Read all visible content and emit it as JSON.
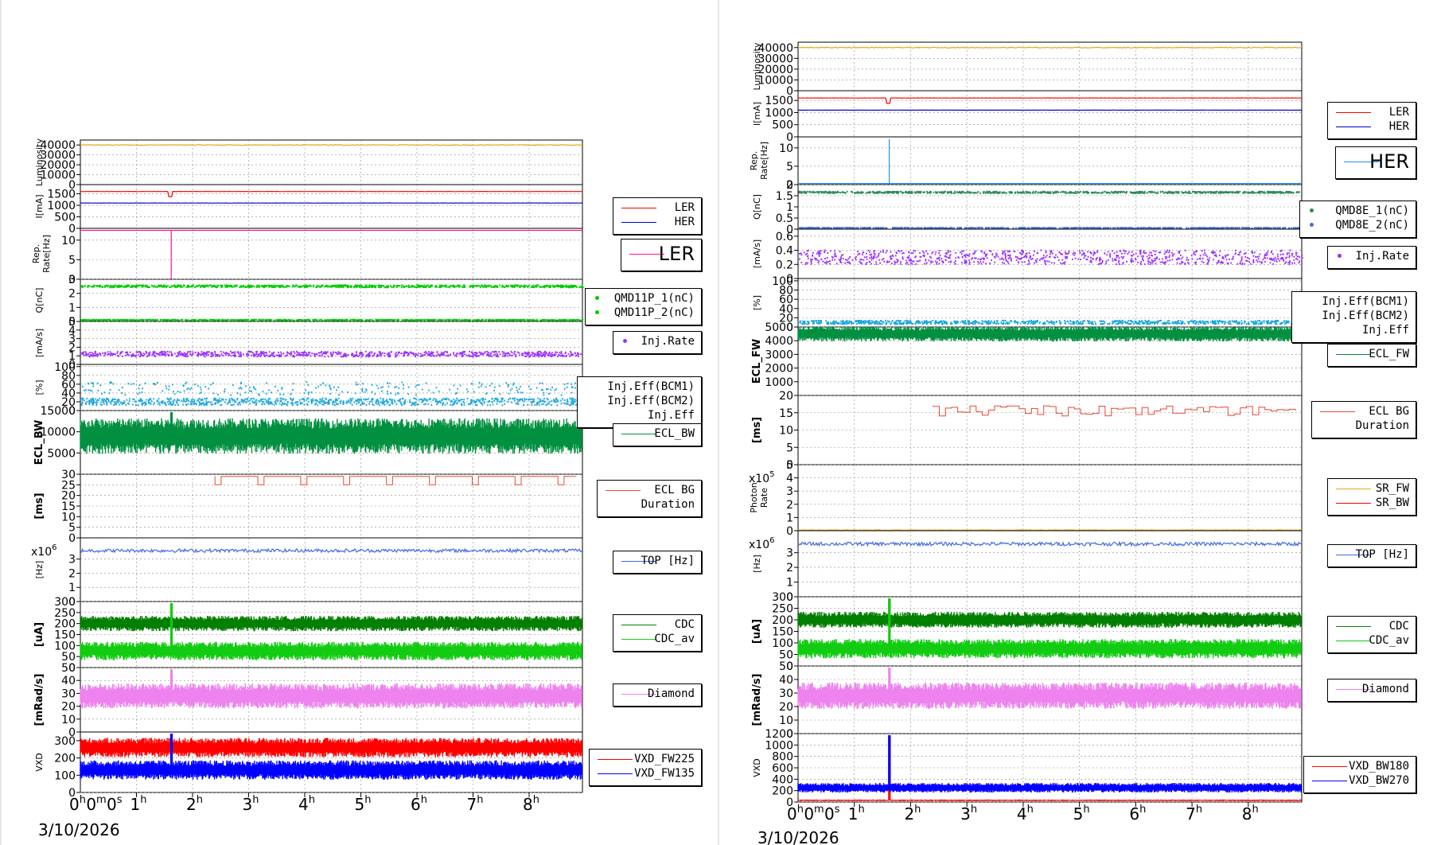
{
  "colors": {
    "lum": "#e6a817",
    "ler": "#ff0000",
    "her": "#0000cc",
    "pink": "#ff1493",
    "herblue": "#1e90ff",
    "green": "#00cc00",
    "qblue": "#3f6fd0",
    "purple": "#9b30ff",
    "cyan": "#1aa7de",
    "eclgreen": "#009040",
    "bgred": "#e84830",
    "topblue": "#4169e1",
    "cdc": "#007f00",
    "cdcav": "#11cc11",
    "diamond": "#ee82ee",
    "red": "#ff0000",
    "blue": "#0000ff",
    "srfw": "#e6a817",
    "srbw": "#ff0000",
    "teal": "#2e8b57",
    "darkblue": "#000080"
  },
  "time_axis": {
    "ticks": [
      1,
      2,
      3,
      4,
      5,
      6,
      7,
      8
    ],
    "first_label": "0h0m0s",
    "range_hours": [
      0,
      8.95
    ],
    "date": "3/10/2026"
  },
  "chart_data": [
    {
      "type": "line",
      "panel": "left",
      "strips": [
        {
          "ylabel": "Luminosity",
          "ylim": [
            0,
            45000
          ],
          "ticks": [
            "40000",
            "30000",
            "20000",
            "10000",
            "0"
          ],
          "series": [
            {
              "color": "lum",
              "base": 40000,
              "noise": 400
            }
          ]
        },
        {
          "ylabel": "I[mA]",
          "ylim": [
            0,
            1900
          ],
          "ticks": [
            "1500",
            "1000",
            "500",
            "0"
          ],
          "series": [
            {
              "color": "ler",
              "base": 1600,
              "noise": 4,
              "dip": 1.6
            },
            {
              "color": "her",
              "base": 1100,
              "noise": 4
            }
          ],
          "legend": [
            "LER",
            "HER"
          ]
        },
        {
          "ylabel": "Rep. Rate[Hz]",
          "ylim": [
            0,
            13
          ],
          "ticks": [
            "10",
            "5",
            "0"
          ],
          "series": [
            {
              "color": "pink",
              "base": 12.5,
              "noise": 0,
              "spike": 1.62
            }
          ],
          "legend_big": "LER"
        },
        {
          "ylabel": "Q[nC]",
          "ylim": [
            0,
            3
          ],
          "ticks": [
            "3",
            "2",
            "1",
            "0"
          ],
          "series": [
            {
              "color": "green",
              "base": 2.5,
              "noise": 0.08,
              "dots": true
            },
            {
              "color": "green",
              "base": 0.1,
              "noise": 0.03,
              "dots": true
            }
          ],
          "legend_dots": [
            "QMD11P_1(nC)",
            "QMD11P_2(nC)"
          ]
        },
        {
          "ylabel": "[mA/s]",
          "ylim": [
            0,
            5
          ],
          "ticks": [
            "5",
            "4",
            "3",
            "2",
            "1",
            "0"
          ],
          "series": [
            {
              "color": "purple",
              "base": 1.2,
              "noise": 0.3,
              "dots": true
            }
          ],
          "legend_dots": [
            "Inj.Rate"
          ]
        },
        {
          "ylabel": "[%]",
          "ylim": [
            0,
            105
          ],
          "ticks": [
            "100",
            "80",
            "60",
            "40",
            "20",
            "0"
          ],
          "series": [
            {
              "color": "cyan",
              "base": 20,
              "noise": 8,
              "dots": true
            },
            {
              "color": "cyan",
              "base": 50,
              "noise": 15,
              "dots": true,
              "sparse": true
            }
          ],
          "legend_text": [
            "Inj.Eff(BCM1)",
            "Inj.Eff(BCM2)",
            "Inj.Eff"
          ]
        },
        {
          "ylabel": "ECL_BW",
          "ylim": [
            0,
            15000
          ],
          "ticks": [
            "15000",
            "10000",
            "5000"
          ],
          "series": [
            {
              "color": "eclgreen",
              "base": 9000,
              "noise": 3000,
              "fill": true
            }
          ],
          "legend": [
            "ECL_BW"
          ]
        },
        {
          "ylabel": "[ms]",
          "ylim": [
            0,
            30
          ],
          "ticks": [
            "30",
            "25",
            "20",
            "15",
            "10",
            "5",
            "0"
          ],
          "series": [
            {
              "color": "bgred",
              "base": 29,
              "noise": 0,
              "steps": true
            }
          ],
          "legend": [
            "ECL BG",
            "Duration"
          ]
        },
        {
          "ylabel": "[Hz]",
          "ylim": [
            0,
            4.5
          ],
          "ticks": [
            "3",
            "2",
            "1",
            "0"
          ],
          "exp": "x10",
          "exp_sup": "6",
          "series": [
            {
              "color": "topblue",
              "base": 3.6,
              "noise": 0.12
            }
          ],
          "legend": [
            "TOP [Hz]"
          ]
        },
        {
          "ylabel": "[uA]",
          "ylim": [
            0,
            300
          ],
          "ticks": [
            "300",
            "250",
            "200",
            "150",
            "100",
            "50",
            "0"
          ],
          "series": [
            {
              "color": "cdc",
              "base": 200,
              "noise": 25,
              "fill": true
            },
            {
              "color": "cdcav",
              "base": 75,
              "noise": 30,
              "fill": true
            }
          ],
          "legend": [
            "CDC",
            "CDC_av"
          ]
        },
        {
          "ylabel": "[mRad/s]",
          "ylim": [
            0,
            50
          ],
          "ticks": [
            "50",
            "40",
            "30",
            "20",
            "10",
            "0"
          ],
          "series": [
            {
              "color": "diamond",
              "base": 28,
              "noise": 7,
              "fill": true
            }
          ],
          "legend": [
            "Diamond"
          ]
        },
        {
          "ylabel": "VXD",
          "ylim": [
            0,
            350
          ],
          "ticks": [
            "300",
            "200",
            "100",
            "0"
          ],
          "series": [
            {
              "color": "red",
              "base": 260,
              "noise": 40,
              "fill": true
            },
            {
              "color": "blue",
              "base": 130,
              "noise": 40,
              "fill": true
            }
          ],
          "legend": [
            "VXD_FW225",
            "VXD_FW135"
          ]
        }
      ]
    },
    {
      "type": "line",
      "panel": "right",
      "strips": [
        {
          "ylabel": "Luminosity",
          "ylim": [
            0,
            45000
          ],
          "ticks": [
            "40000",
            "30000",
            "20000",
            "10000",
            "0"
          ],
          "series": [
            {
              "color": "lum",
              "base": 40000,
              "noise": 400
            }
          ]
        },
        {
          "ylabel": "I[mA]",
          "ylim": [
            0,
            1900
          ],
          "ticks": [
            "1500",
            "1000",
            "500",
            "0"
          ],
          "series": [
            {
              "color": "ler",
              "base": 1600,
              "noise": 4,
              "dip": 1.6
            },
            {
              "color": "her",
              "base": 1100,
              "noise": 4
            }
          ],
          "legend": [
            "LER",
            "HER"
          ]
        },
        {
          "ylabel": "Rep. Rate[Hz]",
          "ylim": [
            0,
            13
          ],
          "ticks": [
            "10",
            "5",
            "0"
          ],
          "series": [
            {
              "color": "herblue",
              "base": 0.3,
              "noise": 0,
              "spike": 1.62
            }
          ],
          "legend_big": "HER"
        },
        {
          "ylabel": "Q[nC]",
          "ylim": [
            0,
            2
          ],
          "ticks": [
            "2",
            "1.5",
            "1",
            "0.5",
            "0"
          ],
          "series": [
            {
              "color": "teal",
              "base": 1.65,
              "noise": 0.04,
              "dots": true
            },
            {
              "color": "qblue",
              "base": 0.05,
              "noise": 0.02,
              "dots": true
            }
          ],
          "legend_dots": [
            "QMD8E_1(nC)",
            "QMD8E_2(nC)"
          ]
        },
        {
          "ylabel": "[mA/s]",
          "ylim": [
            0,
            0.7
          ],
          "ticks": [
            "0.6",
            "0.4",
            "0.2",
            "0"
          ],
          "series": [
            {
              "color": "purple",
              "base": 0.3,
              "noise": 0.1,
              "dots": true
            }
          ],
          "legend_dots": [
            "Inj.Rate"
          ]
        },
        {
          "ylabel": "[%]",
          "ylim": [
            0,
            105
          ],
          "ticks": [
            "100",
            "80",
            "60",
            "40",
            "20",
            "0"
          ],
          "series": [
            {
              "color": "cyan",
              "base": 10,
              "noise": 4,
              "dots": true
            }
          ],
          "legend_text": [
            "Inj.Eff(BCM1)",
            "Inj.Eff(BCM2)",
            "Inj.Eff"
          ]
        },
        {
          "ylabel": "ECL_FW",
          "ylim": [
            0,
            5000
          ],
          "ticks": [
            "5000",
            "4000",
            "3000",
            "2000",
            "1000"
          ],
          "series": [
            {
              "color": "eclgreen",
              "base": 4500,
              "noise": 400,
              "fill": true
            }
          ],
          "legend": [
            "ECL_FW"
          ]
        },
        {
          "ylabel": "[ms]",
          "ylim": [
            0,
            20
          ],
          "ticks": [
            "20",
            "15",
            "10",
            "5",
            "0"
          ],
          "series": [
            {
              "color": "bgred",
              "base": 17,
              "noise": 1.5,
              "steps": true
            }
          ],
          "legend": [
            "ECL BG",
            "Duration"
          ]
        },
        {
          "ylabel": "Photon Rate",
          "ylim": [
            0,
            5
          ],
          "ticks": [
            "5",
            "4",
            "3",
            "2",
            "1",
            "0"
          ],
          "exp": "x10",
          "exp_sup": "5",
          "series": [
            {
              "color": "srfw",
              "base": 0.05,
              "noise": 0.02
            }
          ],
          "legend": [
            "SR_FW",
            "SR_BW"
          ]
        },
        {
          "ylabel": "[Hz]",
          "ylim": [
            0,
            4.5
          ],
          "ticks": [
            "3",
            "2",
            "1",
            "0"
          ],
          "exp": "x10",
          "exp_sup": "6",
          "series": [
            {
              "color": "topblue",
              "base": 3.6,
              "noise": 0.12
            }
          ],
          "legend": [
            "TOP [Hz]"
          ]
        },
        {
          "ylabel": "[uA]",
          "ylim": [
            0,
            300
          ],
          "ticks": [
            "300",
            "250",
            "200",
            "150",
            "100",
            "50",
            "0"
          ],
          "series": [
            {
              "color": "cdc",
              "base": 200,
              "noise": 25,
              "fill": true
            },
            {
              "color": "cdcav",
              "base": 75,
              "noise": 30,
              "fill": true
            }
          ],
          "legend": [
            "CDC",
            "CDC_av"
          ]
        },
        {
          "ylabel": "[mRad/s]",
          "ylim": [
            0,
            50
          ],
          "ticks": [
            "50",
            "40",
            "30",
            "20",
            "10",
            "0"
          ],
          "series": [
            {
              "color": "diamond",
              "base": 28,
              "noise": 7,
              "fill": true
            }
          ],
          "legend": [
            "Diamond"
          ]
        },
        {
          "ylabel": "VXD",
          "ylim": [
            0,
            1200
          ],
          "ticks": [
            "1200",
            "1000",
            "800",
            "600",
            "400",
            "200",
            "0"
          ],
          "series": [
            {
              "color": "red",
              "base": 30,
              "noise": 10,
              "fill": true
            },
            {
              "color": "blue",
              "base": 250,
              "noise": 60,
              "fill": true
            }
          ],
          "legend": [
            "VXD_BW180",
            "VXD_BW270"
          ]
        }
      ]
    }
  ]
}
